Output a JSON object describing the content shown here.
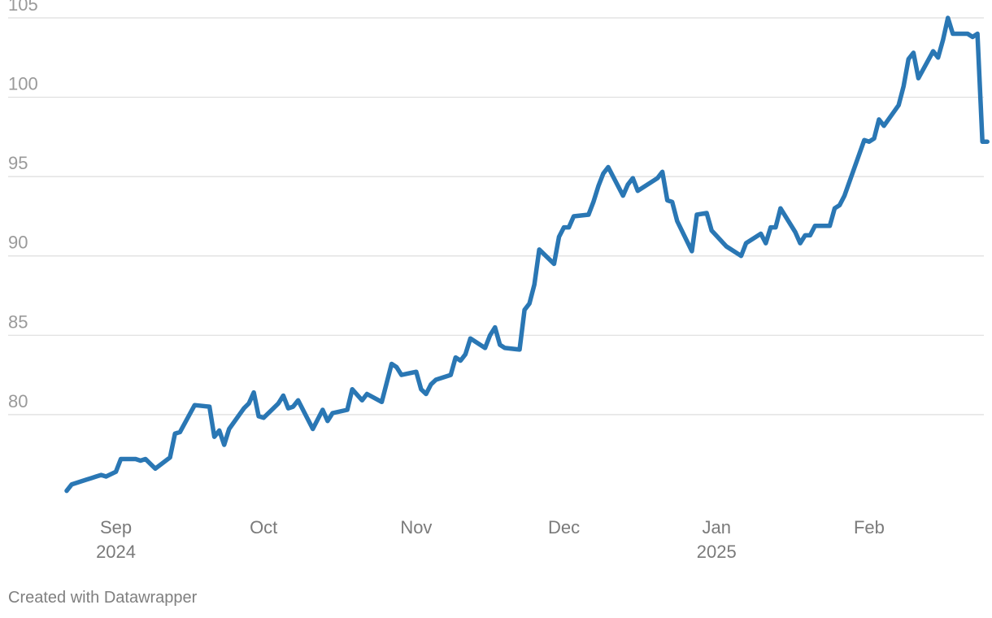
{
  "footer": {
    "credit": "Created with Datawrapper"
  },
  "chart_data": {
    "type": "line",
    "title": "",
    "xlabel": "",
    "ylabel": "",
    "grid": true,
    "line_color": "#2a77b4",
    "grid_color": "#dedede",
    "ylim": [
      74,
      105
    ],
    "xlim": [
      "2024-08-22",
      "2025-02-21"
    ],
    "y_ticks": [
      80,
      85,
      90,
      95,
      100,
      105
    ],
    "x_ticks": [
      {
        "date": "2024-09-01",
        "label": "Sep",
        "sublabel": "2024"
      },
      {
        "date": "2024-10-01",
        "label": "Oct",
        "sublabel": ""
      },
      {
        "date": "2024-11-01",
        "label": "Nov",
        "sublabel": ""
      },
      {
        "date": "2024-12-01",
        "label": "Dec",
        "sublabel": ""
      },
      {
        "date": "2025-01-01",
        "label": "Jan",
        "sublabel": "2025"
      },
      {
        "date": "2025-02-01",
        "label": "Feb",
        "sublabel": ""
      }
    ],
    "series": [
      {
        "points": [
          [
            "2024-08-22",
            75.2
          ],
          [
            "2024-08-23",
            75.6
          ],
          [
            "2024-08-26",
            75.9
          ],
          [
            "2024-08-27",
            76.0
          ],
          [
            "2024-08-28",
            76.1
          ],
          [
            "2024-08-29",
            76.2
          ],
          [
            "2024-08-30",
            76.1
          ],
          [
            "2024-09-01",
            76.4
          ],
          [
            "2024-09-02",
            77.2
          ],
          [
            "2024-09-05",
            77.2
          ],
          [
            "2024-09-06",
            77.1
          ],
          [
            "2024-09-07",
            77.2
          ],
          [
            "2024-09-09",
            76.6
          ],
          [
            "2024-09-12",
            77.3
          ],
          [
            "2024-09-13",
            78.8
          ],
          [
            "2024-09-14",
            78.9
          ],
          [
            "2024-09-17",
            80.6
          ],
          [
            "2024-09-20",
            80.5
          ],
          [
            "2024-09-21",
            78.6
          ],
          [
            "2024-09-22",
            79.0
          ],
          [
            "2024-09-23",
            78.1
          ],
          [
            "2024-09-24",
            79.1
          ],
          [
            "2024-09-27",
            80.4
          ],
          [
            "2024-09-28",
            80.7
          ],
          [
            "2024-09-29",
            81.4
          ],
          [
            "2024-09-30",
            79.9
          ],
          [
            "2024-10-01",
            79.8
          ],
          [
            "2024-10-04",
            80.7
          ],
          [
            "2024-10-05",
            81.2
          ],
          [
            "2024-10-06",
            80.4
          ],
          [
            "2024-10-07",
            80.5
          ],
          [
            "2024-10-08",
            80.9
          ],
          [
            "2024-10-11",
            79.1
          ],
          [
            "2024-10-13",
            80.3
          ],
          [
            "2024-10-14",
            79.6
          ],
          [
            "2024-10-15",
            80.1
          ],
          [
            "2024-10-18",
            80.3
          ],
          [
            "2024-10-19",
            81.6
          ],
          [
            "2024-10-21",
            80.9
          ],
          [
            "2024-10-22",
            81.3
          ],
          [
            "2024-10-25",
            80.8
          ],
          [
            "2024-10-27",
            83.2
          ],
          [
            "2024-10-28",
            83.0
          ],
          [
            "2024-10-29",
            82.5
          ],
          [
            "2024-11-01",
            82.7
          ],
          [
            "2024-11-02",
            81.6
          ],
          [
            "2024-11-03",
            81.3
          ],
          [
            "2024-11-04",
            81.9
          ],
          [
            "2024-11-05",
            82.2
          ],
          [
            "2024-11-08",
            82.5
          ],
          [
            "2024-11-09",
            83.6
          ],
          [
            "2024-11-10",
            83.4
          ],
          [
            "2024-11-11",
            83.8
          ],
          [
            "2024-11-12",
            84.8
          ],
          [
            "2024-11-15",
            84.2
          ],
          [
            "2024-11-16",
            85.0
          ],
          [
            "2024-11-17",
            85.5
          ],
          [
            "2024-11-18",
            84.4
          ],
          [
            "2024-11-19",
            84.2
          ],
          [
            "2024-11-22",
            84.1
          ],
          [
            "2024-11-23",
            86.6
          ],
          [
            "2024-11-24",
            87.0
          ],
          [
            "2024-11-25",
            88.2
          ],
          [
            "2024-11-26",
            90.4
          ],
          [
            "2024-11-29",
            89.5
          ],
          [
            "2024-11-30",
            91.2
          ],
          [
            "2024-12-01",
            91.8
          ],
          [
            "2024-12-02",
            91.8
          ],
          [
            "2024-12-03",
            92.5
          ],
          [
            "2024-12-06",
            92.6
          ],
          [
            "2024-12-07",
            93.4
          ],
          [
            "2024-12-08",
            94.4
          ],
          [
            "2024-12-09",
            95.2
          ],
          [
            "2024-12-10",
            95.6
          ],
          [
            "2024-12-13",
            93.8
          ],
          [
            "2024-12-14",
            94.5
          ],
          [
            "2024-12-15",
            94.9
          ],
          [
            "2024-12-16",
            94.1
          ],
          [
            "2024-12-20",
            94.9
          ],
          [
            "2024-12-21",
            95.3
          ],
          [
            "2024-12-22",
            93.5
          ],
          [
            "2024-12-23",
            93.4
          ],
          [
            "2024-12-24",
            92.2
          ],
          [
            "2024-12-27",
            90.3
          ],
          [
            "2024-12-28",
            92.6
          ],
          [
            "2024-12-30",
            92.7
          ],
          [
            "2024-12-31",
            91.6
          ],
          [
            "2025-01-03",
            90.6
          ],
          [
            "2025-01-06",
            90.0
          ],
          [
            "2025-01-07",
            90.8
          ],
          [
            "2025-01-10",
            91.4
          ],
          [
            "2025-01-11",
            90.8
          ],
          [
            "2025-01-12",
            91.8
          ],
          [
            "2025-01-13",
            91.8
          ],
          [
            "2025-01-14",
            93.0
          ],
          [
            "2025-01-17",
            91.5
          ],
          [
            "2025-01-18",
            90.8
          ],
          [
            "2025-01-19",
            91.3
          ],
          [
            "2025-01-20",
            91.3
          ],
          [
            "2025-01-21",
            91.9
          ],
          [
            "2025-01-24",
            91.9
          ],
          [
            "2025-01-25",
            93.0
          ],
          [
            "2025-01-26",
            93.2
          ],
          [
            "2025-01-27",
            93.8
          ],
          [
            "2025-01-31",
            97.3
          ],
          [
            "2025-02-01",
            97.2
          ],
          [
            "2025-02-02",
            97.4
          ],
          [
            "2025-02-03",
            98.6
          ],
          [
            "2025-02-04",
            98.2
          ],
          [
            "2025-02-07",
            99.5
          ],
          [
            "2025-02-08",
            100.7
          ],
          [
            "2025-02-09",
            102.4
          ],
          [
            "2025-02-10",
            102.8
          ],
          [
            "2025-02-11",
            101.2
          ],
          [
            "2025-02-14",
            102.9
          ],
          [
            "2025-02-15",
            102.5
          ],
          [
            "2025-02-16",
            103.6
          ],
          [
            "2025-02-17",
            105.0
          ],
          [
            "2025-02-18",
            104.0
          ],
          [
            "2025-02-21",
            104.0
          ],
          [
            "2025-02-22",
            103.8
          ],
          [
            "2025-02-23",
            104.0
          ],
          [
            "2025-02-24",
            97.2
          ],
          [
            "2025-02-25",
            97.2
          ]
        ]
      }
    ]
  }
}
